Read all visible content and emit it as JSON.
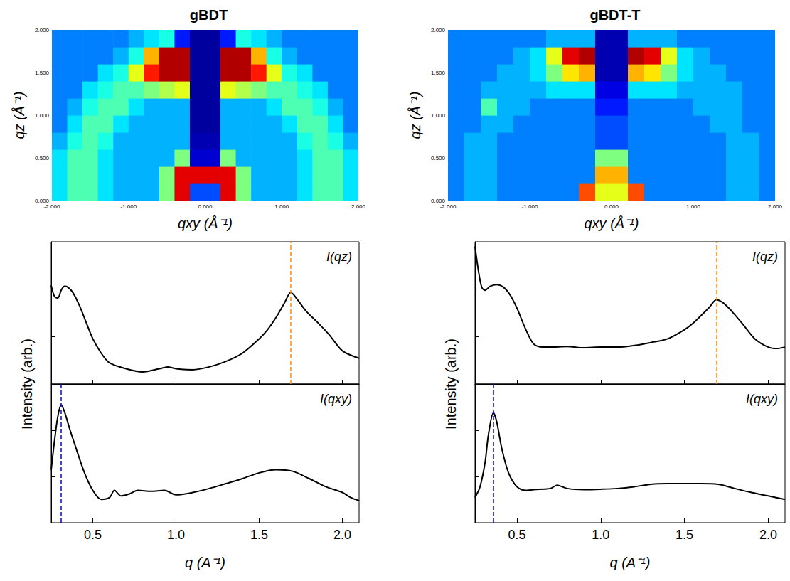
{
  "chart_data": [
    {
      "type": "heatmap",
      "title": "gBDT",
      "xlabel": "qxy (Å⁻¹)",
      "ylabel": "qz (Å⁻¹)",
      "x": [
        -1.9,
        -1.7,
        -1.5,
        -1.3,
        -1.1,
        -0.9,
        -0.7,
        -0.5,
        -0.3,
        -0.1,
        0.1,
        0.3,
        0.5,
        0.7,
        0.9,
        1.1,
        1.3,
        1.5,
        1.7,
        1.9
      ],
      "y": [
        0.1,
        0.3,
        0.5,
        0.7,
        0.9,
        1.1,
        1.3,
        1.5,
        1.7,
        1.9
      ],
      "z": [
        [
          3.5,
          4.5,
          4.5,
          3.5,
          3,
          3,
          3,
          5,
          9,
          2,
          2,
          9,
          5,
          3,
          3,
          3,
          3.5,
          4.5,
          4.5,
          3.5
        ],
        [
          3.5,
          4.5,
          4.5,
          3.5,
          3,
          3,
          3,
          5,
          9,
          9,
          9,
          9,
          5,
          3,
          3,
          3,
          3.5,
          4.5,
          4.5,
          3.5
        ],
        [
          3.5,
          4.5,
          4.5,
          3.5,
          3,
          3,
          3,
          3,
          5,
          0.8,
          0.8,
          5,
          3,
          3,
          3,
          3,
          3.5,
          4.5,
          4.5,
          3.5
        ],
        [
          3,
          4,
          4.5,
          4,
          3,
          3,
          3,
          3,
          3,
          0.5,
          0.5,
          3,
          3,
          3,
          3,
          3,
          4,
          4.5,
          4,
          3
        ],
        [
          2.5,
          3.5,
          4.5,
          4.5,
          3.5,
          3,
          3,
          3,
          3,
          0.3,
          0.3,
          3,
          3,
          3,
          3,
          3.5,
          4.5,
          4.5,
          3.5,
          2.5
        ],
        [
          2.5,
          3,
          4,
          4.5,
          4.5,
          3.5,
          3,
          3,
          3,
          0.3,
          0.3,
          3,
          3,
          3,
          3.5,
          4.5,
          4.5,
          4,
          3,
          2.5
        ],
        [
          2.5,
          2.5,
          3.5,
          4,
          4.5,
          4.5,
          5,
          5.5,
          6,
          0.3,
          0.3,
          6,
          5.5,
          5,
          4.5,
          4.5,
          4,
          3.5,
          2.5,
          2.5
        ],
        [
          2.5,
          2.5,
          2.5,
          3.5,
          4,
          6,
          8.5,
          9.5,
          9.5,
          0.3,
          0.3,
          9.5,
          9.5,
          8.5,
          6,
          4,
          3.5,
          2.5,
          2.5,
          2.5
        ],
        [
          2.5,
          2.5,
          2.5,
          2.5,
          3,
          4,
          7,
          9.5,
          9.5,
          0.3,
          0.3,
          9.5,
          9.5,
          7,
          4,
          3,
          2.5,
          2.5,
          2.5,
          2.5
        ],
        [
          2.5,
          2.5,
          2.5,
          2.5,
          2.5,
          3,
          3.5,
          4,
          1.5,
          0.3,
          0.3,
          1.5,
          4,
          3.5,
          3,
          2.5,
          2.5,
          2.5,
          2.5,
          2.5
        ]
      ],
      "zlim": [
        0,
        10
      ],
      "xlim": [
        -2,
        2
      ],
      "ylim": [
        0,
        2
      ],
      "xticks": [
        {
          "value": -2,
          "label": "-2.000"
        },
        {
          "value": -1,
          "label": "-1.000"
        },
        {
          "value": 0,
          "label": "0.000"
        },
        {
          "value": 1,
          "label": "1.000"
        },
        {
          "value": 2,
          "label": "2.000"
        }
      ],
      "yticks": [
        {
          "value": 0,
          "label": "0.000"
        },
        {
          "value": 0.5,
          "label": "0.500"
        },
        {
          "value": 1,
          "label": "1.000"
        },
        {
          "value": 1.5,
          "label": "1.500"
        },
        {
          "value": 2,
          "label": "2.000"
        }
      ],
      "grid": false
    },
    {
      "type": "line",
      "annotation": "I(qz)",
      "color": "#000000",
      "x": [
        0.25,
        0.27,
        0.29,
        0.31,
        0.33,
        0.35,
        0.38,
        0.42,
        0.46,
        0.5,
        0.55,
        0.6,
        0.7,
        0.8,
        0.9,
        0.95,
        1.0,
        1.1,
        1.2,
        1.3,
        1.4,
        1.5,
        1.55,
        1.6,
        1.65,
        1.69,
        1.73,
        1.78,
        1.85,
        1.92,
        2.0,
        2.1
      ],
      "values": [
        120,
        70,
        65,
        95,
        115,
        110,
        85,
        45,
        20,
        9,
        4.5,
        2.8,
        2.1,
        1.8,
        2.1,
        2.3,
        2.1,
        2.0,
        2.3,
        3,
        4.5,
        9,
        14,
        25,
        50,
        85,
        60,
        35,
        20,
        11,
        5,
        3.5
      ],
      "xlim": [
        0.25,
        2.1
      ],
      "ylim": [
        1,
        1000
      ],
      "xticks": [
        0.5,
        {
          "value": 1,
          "label": "1.0"
        },
        1.5,
        {
          "value": 2,
          "label": "2.0"
        }
      ],
      "yticks": [
        1,
        10,
        100,
        1000
      ],
      "log": "y",
      "grid": false,
      "tick_labels": false,
      "vlines": [
        {
          "x": 1.69,
          "color": "#ff8c00",
          "line_style": "dashed"
        }
      ]
    },
    {
      "type": "line",
      "annotation": "I(qxy)",
      "color": "#000000",
      "xlabel": "q (A⁻¹)",
      "ylabel": "Intensity (arb.)",
      "x": [
        0.25,
        0.27,
        0.29,
        0.31,
        0.33,
        0.36,
        0.4,
        0.45,
        0.5,
        0.55,
        0.6,
        0.63,
        0.67,
        0.72,
        0.77,
        0.85,
        0.93,
        1.0,
        1.1,
        1.2,
        1.3,
        1.4,
        1.5,
        1.6,
        1.7,
        1.8,
        1.9,
        2.0,
        2.05,
        2.1
      ],
      "values": [
        14,
        60,
        200,
        355,
        250,
        110,
        40,
        12,
        5,
        3.2,
        3.5,
        5,
        3.8,
        4.2,
        5,
        4.8,
        5,
        4,
        4.5,
        5.5,
        7,
        9,
        12,
        14,
        13,
        9,
        6,
        4.5,
        3.5,
        3
      ],
      "xlim": [
        0.25,
        2.1
      ],
      "ylim": [
        1,
        1000
      ],
      "xticks": [
        0.5,
        {
          "value": 1,
          "label": "1.0"
        },
        1.5,
        {
          "value": 2,
          "label": "2.0"
        }
      ],
      "yticks": [
        1,
        10,
        100,
        1000
      ],
      "log": "y",
      "grid": false,
      "tick_labels": "x",
      "vlines": [
        {
          "x": 0.31,
          "color": "#0000ff",
          "line_style": "dashed"
        }
      ]
    },
    {
      "type": "heatmap",
      "title": "gBDT-T",
      "xlabel": "qxy (Å⁻¹)",
      "ylabel": "qz (Å⁻¹)",
      "x": [
        -1.9,
        -1.7,
        -1.5,
        -1.3,
        -1.1,
        -0.9,
        -0.7,
        -0.5,
        -0.3,
        -0.1,
        0.1,
        0.3,
        0.5,
        0.7,
        0.9,
        1.1,
        1.3,
        1.5,
        1.7,
        1.9
      ],
      "y": [
        0.1,
        0.3,
        0.5,
        0.7,
        0.9,
        1.1,
        1.3,
        1.5,
        1.7,
        1.9
      ],
      "z": [
        [
          2.5,
          3,
          3,
          2.5,
          2.5,
          2.5,
          2.5,
          2.5,
          8,
          6,
          6,
          8,
          2.5,
          2.5,
          2.5,
          2.5,
          2.5,
          3,
          3,
          2.5
        ],
        [
          2.5,
          3,
          3,
          2.5,
          2.5,
          2.5,
          2.5,
          2.5,
          2.5,
          7,
          7,
          2.5,
          2.5,
          2.5,
          2.5,
          2.5,
          2.5,
          3,
          3,
          2.5
        ],
        [
          2.5,
          3,
          3,
          2.5,
          2.5,
          2.5,
          2.5,
          2.5,
          2.5,
          5,
          5,
          2.5,
          2.5,
          2.5,
          2.5,
          2.5,
          2.5,
          3,
          3,
          2.5
        ],
        [
          2.5,
          3,
          3,
          2.5,
          2.5,
          2.5,
          2.5,
          2.5,
          2.5,
          2,
          2,
          2.5,
          2.5,
          2.5,
          2.5,
          2.5,
          2.5,
          3,
          3,
          2.5
        ],
        [
          2.5,
          2.5,
          3,
          3,
          2.5,
          2.5,
          2.5,
          2.5,
          2.5,
          2,
          2,
          2.5,
          2.5,
          2.5,
          2.5,
          2.5,
          3,
          3,
          2.5,
          2.5
        ],
        [
          2.5,
          2.5,
          4.5,
          3,
          3,
          2.5,
          2.5,
          2.5,
          2.5,
          1.5,
          1.5,
          2.5,
          2.5,
          2.5,
          2.5,
          3,
          3,
          3,
          2.5,
          2.5
        ],
        [
          2.5,
          2.5,
          3,
          3,
          3,
          3,
          3.5,
          3.5,
          3.5,
          1,
          1,
          3.5,
          3.5,
          3.5,
          3,
          3,
          3,
          3,
          2.5,
          2.5
        ],
        [
          2.5,
          2.5,
          2.5,
          3,
          3,
          3.5,
          5,
          6.5,
          7,
          0.5,
          0.5,
          7,
          6.5,
          5,
          3.5,
          3,
          3,
          2.5,
          2.5,
          2.5
        ],
        [
          2.5,
          2.5,
          2.5,
          2.5,
          3,
          3.5,
          6,
          9,
          9.5,
          0.5,
          0.5,
          9.5,
          9,
          6,
          3.5,
          3,
          2.5,
          2.5,
          2.5,
          2.5
        ],
        [
          2.5,
          2.5,
          2.5,
          2.5,
          2.5,
          2.5,
          3,
          3,
          3,
          0.5,
          0.5,
          3,
          3,
          3,
          2.5,
          2.5,
          2.5,
          2.5,
          2.5,
          2.5
        ]
      ],
      "zlim": [
        0,
        10
      ],
      "xlim": [
        -2,
        2
      ],
      "ylim": [
        0,
        2
      ],
      "xticks": [
        {
          "value": -2,
          "label": "-2.000"
        },
        {
          "value": -1,
          "label": "-1.000"
        },
        {
          "value": 0,
          "label": "0.000"
        },
        {
          "value": 1,
          "label": "1.000"
        },
        {
          "value": 2,
          "label": "2.000"
        }
      ],
      "yticks": [
        {
          "value": 0,
          "label": "0.000"
        },
        {
          "value": 0.5,
          "label": "0.500"
        },
        {
          "value": 1,
          "label": "1.000"
        },
        {
          "value": 1.5,
          "label": "1.500"
        },
        {
          "value": 2,
          "label": "2.000"
        }
      ],
      "grid": false
    },
    {
      "type": "line",
      "annotation": "I(qz)",
      "color": "#000000",
      "x": [
        0.25,
        0.27,
        0.29,
        0.31,
        0.34,
        0.38,
        0.42,
        0.46,
        0.5,
        0.55,
        0.6,
        0.65,
        0.7,
        0.8,
        0.9,
        1.0,
        1.1,
        1.2,
        1.3,
        1.4,
        1.5,
        1.55,
        1.6,
        1.65,
        1.69,
        1.73,
        1.78,
        1.85,
        1.92,
        2.0,
        2.05,
        2.1
      ],
      "values": [
        800,
        250,
        110,
        95,
        115,
        125,
        110,
        75,
        40,
        15,
        7,
        6,
        6,
        6.2,
        5.8,
        6,
        6,
        6.5,
        7.5,
        9,
        14,
        19,
        28,
        42,
        60,
        52,
        35,
        18,
        9,
        6,
        5.6,
        6
      ],
      "xlim": [
        0.25,
        2.1
      ],
      "ylim": [
        1,
        1000
      ],
      "xticks": [
        0.5,
        {
          "value": 1,
          "label": "1.0"
        },
        1.5,
        {
          "value": 2,
          "label": "2.0"
        }
      ],
      "yticks": [
        1,
        10,
        100,
        1000
      ],
      "log": "y",
      "grid": false,
      "tick_labels": false,
      "vlines": [
        {
          "x": 1.69,
          "color": "#ff8c00",
          "line_style": "dashed"
        }
      ]
    },
    {
      "type": "line",
      "annotation": "I(qxy)",
      "color": "#000000",
      "xlabel": "q (A⁻¹)",
      "ylabel": "Intensity (arb.)",
      "x": [
        0.25,
        0.28,
        0.31,
        0.33,
        0.36,
        0.38,
        0.41,
        0.45,
        0.5,
        0.55,
        0.6,
        0.7,
        0.74,
        0.8,
        0.9,
        1.0,
        1.1,
        1.2,
        1.3,
        1.4,
        1.5,
        1.6,
        1.7,
        1.8,
        1.9,
        2.0,
        2.1
      ],
      "values": [
        3.5,
        6,
        20,
        80,
        240,
        150,
        40,
        12,
        6,
        5,
        5.2,
        5.5,
        6.5,
        5.5,
        5.2,
        5.3,
        5.5,
        6,
        6.8,
        7,
        7,
        7,
        6.8,
        5.5,
        4.5,
        3.8,
        3.2
      ],
      "xlim": [
        0.25,
        2.1
      ],
      "ylim": [
        1,
        1000
      ],
      "xticks": [
        0.5,
        {
          "value": 1,
          "label": "1.0"
        },
        1.5,
        {
          "value": 2,
          "label": "2.0"
        }
      ],
      "yticks": [
        1,
        10,
        100,
        1000
      ],
      "log": "y",
      "grid": false,
      "tick_labels": "x",
      "vlines": [
        {
          "x": 0.36,
          "color": "#0000ff",
          "line_style": "dashed"
        }
      ]
    }
  ]
}
